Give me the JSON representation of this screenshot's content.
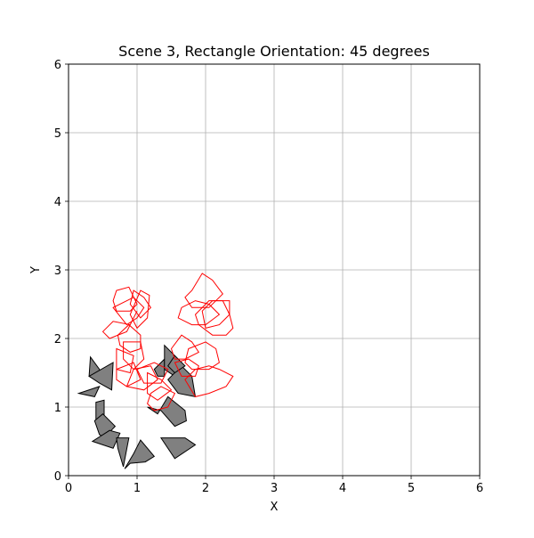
{
  "chart_data": {
    "type": "scatter",
    "title": "Scene 3, Rectangle Orientation: 45 degrees",
    "xlabel": "X",
    "ylabel": "Y",
    "xlim": [
      0,
      6
    ],
    "ylim": [
      0,
      6
    ],
    "xticks": [
      0,
      1,
      2,
      3,
      4,
      5,
      6
    ],
    "yticks": [
      0,
      1,
      2,
      3,
      4,
      5,
      6
    ],
    "grid": true,
    "colors": {
      "obstacle_fill": "#808080",
      "obstacle_edge": "#000000",
      "outline": "#ff0000",
      "grid": "#b0b0b0"
    },
    "series": [
      {
        "kind": "filled",
        "polygons": [
          [
            [
              0.32,
              1.73
            ],
            [
              0.45,
              1.55
            ],
            [
              0.5,
              1.35
            ],
            [
              0.3,
              1.45
            ]
          ],
          [
            [
              0.3,
              1.45
            ],
            [
              0.65,
              1.65
            ],
            [
              0.63,
              1.25
            ],
            [
              0.45,
              1.35
            ]
          ],
          [
            [
              0.15,
              1.2
            ],
            [
              0.45,
              1.3
            ],
            [
              0.38,
              1.15
            ]
          ],
          [
            [
              0.4,
              1.07
            ],
            [
              0.52,
              1.1
            ],
            [
              0.52,
              0.8
            ],
            [
              0.4,
              0.8
            ]
          ],
          [
            [
              0.38,
              0.8
            ],
            [
              0.5,
              0.9
            ],
            [
              0.68,
              0.72
            ],
            [
              0.52,
              0.55
            ],
            [
              0.45,
              0.6
            ]
          ],
          [
            [
              0.35,
              0.5
            ],
            [
              0.65,
              0.4
            ],
            [
              0.75,
              0.62
            ],
            [
              0.6,
              0.66
            ]
          ],
          [
            [
              0.7,
              0.55
            ],
            [
              0.88,
              0.55
            ],
            [
              0.8,
              0.13
            ],
            [
              0.72,
              0.4
            ]
          ],
          [
            [
              0.82,
              0.1
            ],
            [
              0.95,
              0.32
            ],
            [
              1.05,
              0.52
            ],
            [
              1.25,
              0.28
            ],
            [
              1.12,
              0.2
            ],
            [
              0.9,
              0.18
            ]
          ],
          [
            [
              1.35,
              0.55
            ],
            [
              1.55,
              0.25
            ],
            [
              1.85,
              0.45
            ],
            [
              1.7,
              0.55
            ]
          ],
          [
            [
              1.15,
              1.0
            ],
            [
              1.35,
              0.95
            ],
            [
              1.55,
              0.72
            ],
            [
              1.72,
              0.8
            ],
            [
              1.7,
              0.95
            ],
            [
              1.45,
              1.15
            ],
            [
              1.3,
              0.9
            ]
          ],
          [
            [
              1.25,
              1.55
            ],
            [
              1.4,
              1.7
            ],
            [
              1.4,
              1.45
            ],
            [
              1.3,
              1.45
            ]
          ],
          [
            [
              1.4,
              1.9
            ],
            [
              1.65,
              1.65
            ],
            [
              1.55,
              1.45
            ],
            [
              1.4,
              1.55
            ]
          ],
          [
            [
              1.45,
              1.4
            ],
            [
              1.6,
              1.2
            ],
            [
              1.85,
              1.15
            ],
            [
              1.8,
              1.45
            ],
            [
              1.65,
              1.6
            ]
          ],
          [
            [
              1.55,
              1.75
            ],
            [
              1.7,
              1.6
            ],
            [
              1.55,
              1.5
            ],
            [
              1.45,
              1.6
            ]
          ]
        ]
      },
      {
        "kind": "outline",
        "polygons": [
          [
            [
              0.7,
              2.7
            ],
            [
              0.88,
              2.75
            ],
            [
              1.0,
              2.5
            ],
            [
              0.9,
              2.4
            ],
            [
              0.7,
              2.4
            ],
            [
              0.65,
              2.55
            ]
          ],
          [
            [
              0.95,
              2.7
            ],
            [
              1.1,
              2.6
            ],
            [
              1.2,
              2.45
            ],
            [
              1.05,
              2.3
            ],
            [
              0.9,
              2.5
            ]
          ],
          [
            [
              0.65,
              2.45
            ],
            [
              0.85,
              2.2
            ],
            [
              1.0,
              2.3
            ],
            [
              1.1,
              2.45
            ],
            [
              0.95,
              2.6
            ]
          ],
          [
            [
              1.05,
              2.7
            ],
            [
              1.18,
              2.63
            ],
            [
              1.15,
              2.3
            ],
            [
              1.0,
              2.15
            ],
            [
              0.9,
              2.35
            ]
          ],
          [
            [
              0.5,
              2.1
            ],
            [
              0.65,
              2.25
            ],
            [
              0.9,
              2.2
            ],
            [
              1.0,
              2.4
            ],
            [
              0.85,
              2.1
            ],
            [
              0.6,
              2.0
            ]
          ],
          [
            [
              0.72,
              2.05
            ],
            [
              0.88,
              2.2
            ],
            [
              1.05,
              2.05
            ],
            [
              1.05,
              1.85
            ],
            [
              0.9,
              1.8
            ],
            [
              0.75,
              1.9
            ]
          ],
          [
            [
              0.8,
              1.95
            ],
            [
              1.05,
              1.95
            ],
            [
              1.1,
              1.7
            ],
            [
              0.95,
              1.55
            ],
            [
              0.8,
              1.7
            ]
          ],
          [
            [
              0.7,
              1.85
            ],
            [
              0.95,
              1.75
            ],
            [
              0.9,
              1.5
            ],
            [
              0.7,
              1.55
            ]
          ],
          [
            [
              0.7,
              1.55
            ],
            [
              0.95,
              1.65
            ],
            [
              1.05,
              1.4
            ],
            [
              0.85,
              1.3
            ],
            [
              0.7,
              1.4
            ]
          ],
          [
            [
              0.85,
              1.3
            ],
            [
              1.1,
              1.25
            ],
            [
              1.3,
              1.4
            ],
            [
              1.2,
              1.6
            ],
            [
              0.95,
              1.55
            ]
          ],
          [
            [
              1.0,
              1.55
            ],
            [
              1.25,
              1.65
            ],
            [
              1.45,
              1.55
            ],
            [
              1.35,
              1.35
            ],
            [
              1.1,
              1.35
            ]
          ],
          [
            [
              1.15,
              1.5
            ],
            [
              1.35,
              1.4
            ],
            [
              1.5,
              1.25
            ],
            [
              1.3,
              1.1
            ],
            [
              1.15,
              1.2
            ]
          ],
          [
            [
              1.2,
              1.2
            ],
            [
              1.35,
              1.3
            ],
            [
              1.55,
              1.2
            ],
            [
              1.45,
              1.0
            ],
            [
              1.25,
              0.95
            ],
            [
              1.15,
              1.05
            ]
          ],
          [
            [
              1.8,
              2.7
            ],
            [
              1.95,
              2.95
            ],
            [
              2.1,
              2.85
            ],
            [
              2.25,
              2.65
            ],
            [
              2.05,
              2.45
            ],
            [
              1.8,
              2.45
            ],
            [
              1.7,
              2.6
            ]
          ],
          [
            [
              1.65,
              2.45
            ],
            [
              1.85,
              2.55
            ],
            [
              2.05,
              2.5
            ],
            [
              2.2,
              2.35
            ],
            [
              2.0,
              2.2
            ],
            [
              1.8,
              2.2
            ],
            [
              1.6,
              2.3
            ]
          ],
          [
            [
              1.95,
              2.4
            ],
            [
              2.1,
              2.55
            ],
            [
              2.35,
              2.55
            ],
            [
              2.35,
              2.35
            ],
            [
              2.2,
              2.2
            ],
            [
              2.0,
              2.15
            ]
          ],
          [
            [
              2.05,
              2.55
            ],
            [
              2.25,
              2.55
            ],
            [
              2.35,
              2.35
            ],
            [
              2.4,
              2.15
            ],
            [
              2.3,
              2.05
            ],
            [
              2.1,
              2.05
            ],
            [
              1.9,
              2.2
            ],
            [
              1.85,
              2.35
            ]
          ],
          [
            [
              1.5,
              1.85
            ],
            [
              1.65,
              2.05
            ],
            [
              1.8,
              1.95
            ],
            [
              1.9,
              1.8
            ],
            [
              1.7,
              1.7
            ],
            [
              1.55,
              1.7
            ]
          ],
          [
            [
              1.75,
              1.85
            ],
            [
              2.0,
              1.95
            ],
            [
              2.15,
              1.85
            ],
            [
              2.2,
              1.65
            ],
            [
              2.05,
              1.55
            ],
            [
              1.8,
              1.55
            ],
            [
              1.7,
              1.65
            ]
          ],
          [
            [
              1.55,
              1.65
            ],
            [
              1.75,
              1.7
            ],
            [
              1.9,
              1.6
            ],
            [
              1.85,
              1.45
            ],
            [
              1.65,
              1.45
            ]
          ],
          [
            [
              1.7,
              1.4
            ],
            [
              1.85,
              1.55
            ],
            [
              2.05,
              1.6
            ],
            [
              2.2,
              1.55
            ],
            [
              2.4,
              1.45
            ],
            [
              2.3,
              1.3
            ],
            [
              2.05,
              1.2
            ],
            [
              1.85,
              1.15
            ]
          ]
        ]
      }
    ]
  }
}
